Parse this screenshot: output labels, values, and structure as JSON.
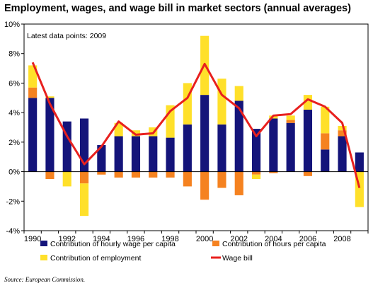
{
  "title": "Employment, wages, and wage bill in market sectors (annual averages)",
  "source": "Source: European Commission.",
  "colors": {
    "wage": "#14147a",
    "hours": "#f58220",
    "employment": "#ffe02a",
    "wagebill": "#e8201e"
  },
  "chart_data": {
    "type": "bar",
    "annotation": "Latest data points: 2009",
    "x": [
      1990,
      1991,
      1992,
      1993,
      1994,
      1995,
      1996,
      1997,
      1998,
      1999,
      2000,
      2001,
      2002,
      2003,
      2004,
      2005,
      2006,
      2007,
      2008,
      2009
    ],
    "x_tick_labels": [
      "1990",
      "1992",
      "1994",
      "1996",
      "1998",
      "2000",
      "2002",
      "2004",
      "2006",
      "2008"
    ],
    "y_tick_labels": [
      "-4%",
      "-2%",
      "0%",
      "2%",
      "4%",
      "6%",
      "8%",
      "10%"
    ],
    "ylim": [
      -4,
      10
    ],
    "stacked": true,
    "grid": false,
    "legend_position": "bottom",
    "series": [
      {
        "name": "Contribution of hourly wage per capita",
        "kind": "bar",
        "values": [
          5.0,
          5.0,
          3.4,
          3.6,
          1.8,
          2.4,
          2.4,
          2.4,
          2.3,
          3.2,
          5.2,
          3.2,
          4.8,
          2.9,
          3.6,
          3.3,
          4.2,
          1.5,
          2.4,
          1.3
        ]
      },
      {
        "name": "Contribution of hours per capita",
        "kind": "bar",
        "values": [
          0.7,
          -0.5,
          0.0,
          -0.8,
          -0.2,
          -0.4,
          -0.4,
          -0.4,
          -0.4,
          -1.0,
          -1.9,
          -1.1,
          -1.6,
          -0.2,
          -0.1,
          0.2,
          -0.3,
          1.1,
          0.4,
          0.0
        ]
      },
      {
        "name": "Contribution of employment",
        "kind": "bar",
        "values": [
          1.5,
          0.1,
          -1.0,
          -2.2,
          0.0,
          0.9,
          0.4,
          0.6,
          2.2,
          2.8,
          4.0,
          3.1,
          1.0,
          -0.3,
          0.2,
          0.3,
          1.0,
          1.8,
          0.3,
          -2.4
        ]
      },
      {
        "name": "Wage bill",
        "kind": "line",
        "values": [
          7.4,
          4.6,
          2.4,
          0.5,
          1.7,
          3.4,
          2.5,
          2.6,
          4.1,
          5.0,
          7.3,
          5.2,
          4.3,
          2.4,
          3.8,
          3.9,
          4.9,
          4.4,
          3.3,
          -1.1
        ]
      }
    ]
  }
}
